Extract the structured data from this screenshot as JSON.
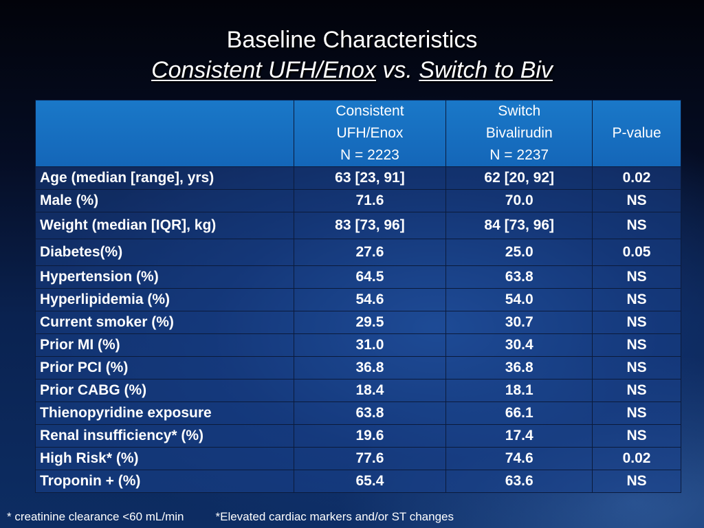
{
  "title": {
    "line1": "Baseline Characteristics",
    "line2_part1": "Consistent UFH/Enox",
    "line2_vs": " vs. ",
    "line2_part2": "Switch to Biv"
  },
  "table": {
    "header": {
      "col2": [
        "Consistent",
        "UFH/Enox",
        "N = 2223"
      ],
      "col3": [
        "Switch",
        "Bivalirudin",
        "N = 2237"
      ],
      "col4": "P-value"
    },
    "rows": [
      {
        "label": "Age (median [range], yrs)",
        "ufh": "63 [23, 91]",
        "biv": "62 [20, 92]",
        "p": "0.02"
      },
      {
        "label": "Male (%)",
        "ufh": "71.6",
        "biv": "70.0",
        "p": "NS"
      },
      {
        "label": "Weight (median [IQR], kg)",
        "ufh": "83 [73, 96]",
        "biv": "84 [73, 96]",
        "p": "NS"
      },
      {
        "label": "Diabetes(%)",
        "ufh": "27.6",
        "biv": "25.0",
        "p": "0.05"
      },
      {
        "label": "Hypertension (%)",
        "ufh": "64.5",
        "biv": "63.8",
        "p": "NS"
      },
      {
        "label": "Hyperlipidemia (%)",
        "ufh": "54.6",
        "biv": "54.0",
        "p": "NS"
      },
      {
        "label": "Current smoker (%)",
        "ufh": "29.5",
        "biv": "30.7",
        "p": "NS"
      },
      {
        "label": "Prior MI (%)",
        "ufh": "31.0",
        "biv": "30.4",
        "p": "NS"
      },
      {
        "label": "Prior PCI (%)",
        "ufh": "36.8",
        "biv": "36.8",
        "p": "NS"
      },
      {
        "label": "Prior CABG (%)",
        "ufh": "18.4",
        "biv": "18.1",
        "p": "NS"
      },
      {
        "label": "Thienopyridine exposure",
        "ufh": "63.8",
        "biv": "66.1",
        "p": "NS"
      },
      {
        "label": "Renal insufficiency* (%)",
        "ufh": "19.6",
        "biv": "17.4",
        "p": "NS"
      },
      {
        "label": "High Risk* (%)",
        "ufh": "77.6",
        "biv": "74.6",
        "p": "0.02"
      },
      {
        "label": "Troponin + (%)",
        "ufh": "65.4",
        "biv": "63.6",
        "p": "NS"
      }
    ]
  },
  "footnotes": {
    "left": "* creatinine clearance <60 mL/min",
    "right": "*Elevated cardiac markers and/or ST changes"
  },
  "colors": {
    "header_bg": "#1a78c8",
    "text": "#ffffff"
  }
}
